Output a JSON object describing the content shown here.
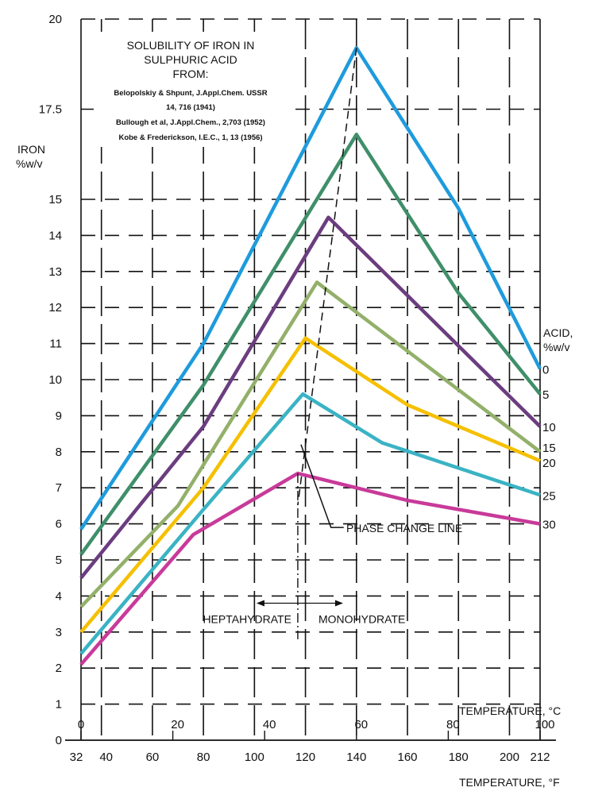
{
  "chart_data": {
    "type": "line",
    "title": [
      "SOLUBILITY OF IRON IN",
      "SULPHURIC ACID",
      "FROM:"
    ],
    "references": [
      "Belopolskiy & Shpunt, J.Appl.Chem. USSR",
      "14, 716 (1941)",
      "Bullough et al, J.Appl.Chem., 2,703 (1952)",
      "Kobe & Frederickson, I.E.C., 1, 13 (1956)"
    ],
    "ylabel": [
      "IRON",
      "%w/v"
    ],
    "xlabel": "TEMPERATURE, °F",
    "xlabel_secondary": "TEMPERATURE, °C",
    "legend_title": [
      "ACID,",
      "%w/v"
    ],
    "legend_placement": "right (labels at line ends)",
    "xlim": [
      32,
      212
    ],
    "ylim": [
      0,
      20
    ],
    "x_ticks": [
      32,
      40,
      60,
      80,
      100,
      120,
      140,
      160,
      180,
      200,
      212
    ],
    "x_tick_labels": [
      "32",
      "40",
      "60",
      "80",
      "100",
      "120",
      "140",
      "160",
      "180",
      "200",
      "212"
    ],
    "x2_ticks_celsius": [
      0,
      20,
      40,
      60,
      80,
      100
    ],
    "y_ticks": [
      0,
      1,
      2,
      3,
      4,
      5,
      6,
      7,
      8,
      9,
      10,
      11,
      12,
      13,
      14,
      15,
      17.5,
      20
    ],
    "y_tick_labels": [
      "0",
      "1",
      "2",
      "3",
      "4",
      "5",
      "6",
      "7",
      "8",
      "9",
      "10",
      "11",
      "12",
      "13",
      "14",
      "15",
      "17.5",
      "20"
    ],
    "grid": true,
    "series": [
      {
        "name": "0",
        "color": "#1e9bdc",
        "points": [
          [
            32,
            5.85
          ],
          [
            80,
            11.0
          ],
          [
            140,
            19.2
          ],
          [
            180,
            14.75
          ],
          [
            212,
            10.3
          ]
        ]
      },
      {
        "name": "5",
        "color": "#3f8f6a",
        "points": [
          [
            32,
            5.15
          ],
          [
            80,
            9.85
          ],
          [
            140,
            16.8
          ],
          [
            180,
            12.4
          ],
          [
            212,
            9.6
          ]
        ]
      },
      {
        "name": "10",
        "color": "#6b3d7f",
        "points": [
          [
            32,
            4.5
          ],
          [
            80,
            8.7
          ],
          [
            129,
            14.5
          ],
          [
            212,
            8.7
          ]
        ]
      },
      {
        "name": "15",
        "color": "#93b06a",
        "points": [
          [
            32,
            3.7
          ],
          [
            70,
            6.5
          ],
          [
            124.5,
            12.7
          ],
          [
            212,
            8.0
          ]
        ]
      },
      {
        "name": "20",
        "color": "#f5c000",
        "points": [
          [
            32,
            3.0
          ],
          [
            80,
            7.0
          ],
          [
            120,
            11.15
          ],
          [
            160,
            9.3
          ],
          [
            212,
            7.75
          ]
        ]
      },
      {
        "name": "25",
        "color": "#3ab3c4",
        "points": [
          [
            32,
            2.4
          ],
          [
            80,
            6.4
          ],
          [
            119,
            9.6
          ],
          [
            150,
            8.25
          ],
          [
            212,
            6.8
          ]
        ]
      },
      {
        "name": "30",
        "color": "#c83a9a",
        "points": [
          [
            32,
            2.1
          ],
          [
            76,
            5.7
          ],
          [
            117,
            7.4
          ],
          [
            160,
            6.65
          ],
          [
            212,
            6.0
          ]
        ]
      }
    ],
    "phase_change_line": [
      [
        140,
        19.2
      ],
      [
        117,
        7.4
      ]
    ],
    "annotations": {
      "phase_change": "PHASE CHANGE LINE",
      "heptahydrate": "HEPTAHYDRATE",
      "monohydrate": "MONOHYDRATE",
      "transition_temp_f": 117
    }
  }
}
